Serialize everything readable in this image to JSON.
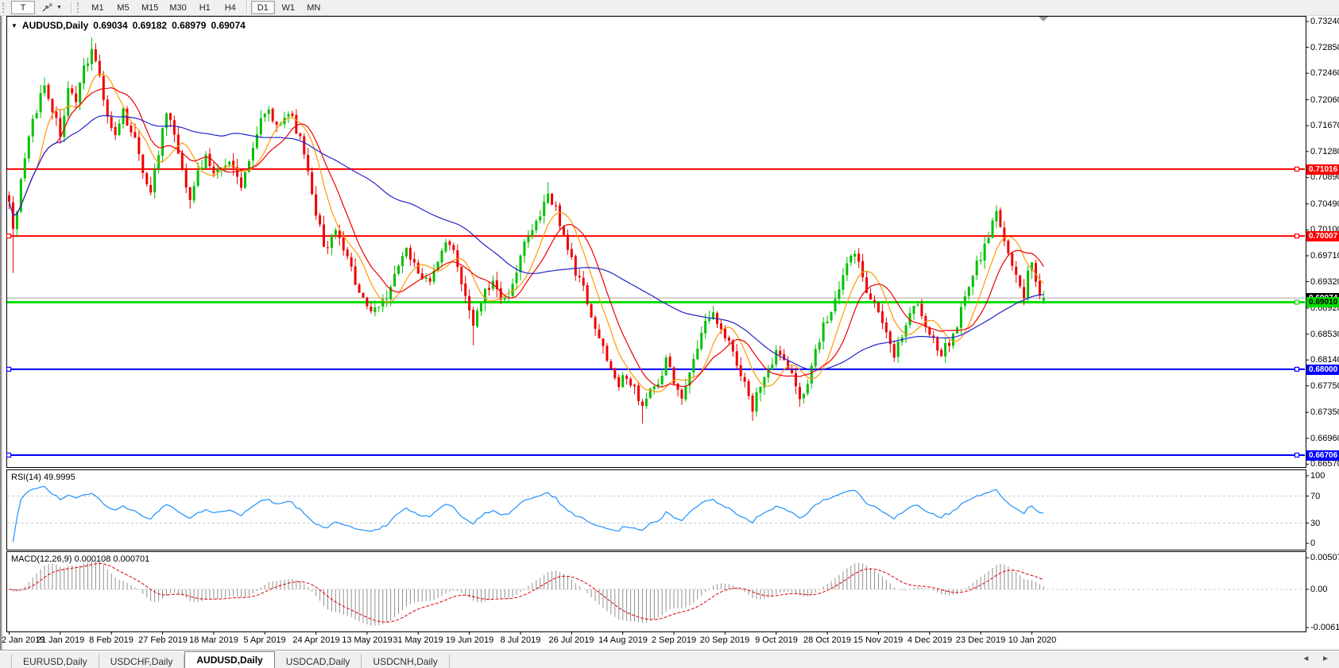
{
  "toolbar": {
    "text_tool": "T",
    "dropdown_caret": "▼",
    "timeframes": [
      "M1",
      "M5",
      "M15",
      "M30",
      "H1",
      "H4",
      "D1",
      "W1",
      "MN"
    ],
    "active_timeframe": "D1"
  },
  "chart": {
    "dropdown_icon": "▼",
    "symbol": "AUDUSD,Daily",
    "open": "0.69034",
    "high": "0.69182",
    "low": "0.68979",
    "close": "0.69074",
    "price_axis_ticks": [
      "0.73240",
      "0.72850",
      "0.72460",
      "0.72060",
      "0.71670",
      "0.71280",
      "0.70890",
      "0.70490",
      "0.70100",
      "0.69710",
      "0.69320",
      "0.68920",
      "0.68530",
      "0.68140",
      "0.67750",
      "0.67350",
      "0.66960",
      "0.66570"
    ],
    "price_tags": [
      {
        "value": "0.71016",
        "bg": "#ff0000",
        "fg": "#ffffff"
      },
      {
        "value": "0.70007",
        "bg": "#ff0000",
        "fg": "#ffffff"
      },
      {
        "value": "0.69074",
        "bg": "#000000",
        "fg": "#ffffff"
      },
      {
        "value": "0.69010",
        "bg": "#00dd00",
        "fg": "#000000"
      },
      {
        "value": "0.68000",
        "bg": "#0000ff",
        "fg": "#ffffff"
      },
      {
        "value": "0.66706",
        "bg": "#0000ff",
        "fg": "#ffffff"
      }
    ],
    "hlines": [
      {
        "price": 0.71016,
        "color": "#ff0000",
        "width": 2,
        "handles": [
          "right"
        ]
      },
      {
        "price": 0.70007,
        "color": "#ff0000",
        "width": 2,
        "handles": [
          "left",
          "right"
        ]
      },
      {
        "price": 0.69074,
        "color": "#a8a8a8",
        "width": 1,
        "handles": []
      },
      {
        "price": 0.6901,
        "color": "#00dd00",
        "width": 3,
        "handles": [
          "right"
        ]
      },
      {
        "price": 0.68,
        "color": "#0000ff",
        "width": 2,
        "handles": [
          "left",
          "right"
        ]
      },
      {
        "price": 0.66706,
        "color": "#0000ff",
        "width": 2,
        "handles": [
          "left",
          "right"
        ]
      }
    ],
    "dates": [
      "2 Jan 2019",
      "21 Jan 2019",
      "8 Feb 2019",
      "27 Feb 2019",
      "18 Mar 2019",
      "5 Apr 2019",
      "24 Apr 2019",
      "13 May 2019",
      "31 May 2019",
      "19 Jun 2019",
      "8 Jul 2019",
      "26 Jul 2019",
      "14 Aug 2019",
      "2 Sep 2019",
      "20 Sep 2019",
      "9 Oct 2019",
      "28 Oct 2019",
      "15 Nov 2019",
      "4 Dec 2019",
      "23 Dec 2019",
      "10 Jan 2020"
    ],
    "date_label_step": 13,
    "candles": {
      "count": 264,
      "up_color": "#00c000",
      "down_color": "#ee0000",
      "waypoints": [
        [
          0,
          0.706
        ],
        [
          1,
          0.7
        ],
        [
          2,
          0.704
        ],
        [
          4,
          0.7115
        ],
        [
          6,
          0.718
        ],
        [
          9,
          0.7225
        ],
        [
          11,
          0.719
        ],
        [
          13,
          0.716
        ],
        [
          15,
          0.722
        ],
        [
          17,
          0.719
        ],
        [
          19,
          0.7255
        ],
        [
          21,
          0.729
        ],
        [
          23,
          0.724
        ],
        [
          25,
          0.7175
        ],
        [
          27,
          0.715
        ],
        [
          29,
          0.719
        ],
        [
          31,
          0.716
        ],
        [
          34,
          0.71
        ],
        [
          36,
          0.7075
        ],
        [
          38,
          0.7125
        ],
        [
          40,
          0.718
        ],
        [
          42,
          0.7155
        ],
        [
          44,
          0.71
        ],
        [
          46,
          0.706
        ],
        [
          48,
          0.709
        ],
        [
          50,
          0.7125
        ],
        [
          53,
          0.7095
        ],
        [
          56,
          0.711
        ],
        [
          59,
          0.708
        ],
        [
          62,
          0.713
        ],
        [
          64,
          0.718
        ],
        [
          66,
          0.7195
        ],
        [
          69,
          0.7165
        ],
        [
          72,
          0.718
        ],
        [
          74,
          0.715
        ],
        [
          76,
          0.709
        ],
        [
          78,
          0.703
        ],
        [
          80,
          0.699
        ],
        [
          83,
          0.7005
        ],
        [
          86,
          0.696
        ],
        [
          89,
          0.6925
        ],
        [
          92,
          0.688
        ],
        [
          95,
          0.6905
        ],
        [
          98,
          0.694
        ],
        [
          101,
          0.6975
        ],
        [
          104,
          0.695
        ],
        [
          107,
          0.6925
        ],
        [
          110,
          0.698
        ],
        [
          112,
          0.7
        ],
        [
          114,
          0.6955
        ],
        [
          116,
          0.69
        ],
        [
          118,
          0.6865
        ],
        [
          120,
          0.691
        ],
        [
          123,
          0.6925
        ],
        [
          126,
          0.6905
        ],
        [
          129,
          0.695
        ],
        [
          132,
          0.6995
        ],
        [
          135,
          0.7035
        ],
        [
          137,
          0.706
        ],
        [
          139,
          0.704
        ],
        [
          141,
          0.7
        ],
        [
          143,
          0.6965
        ],
        [
          145,
          0.693
        ],
        [
          147,
          0.69
        ],
        [
          149,
          0.687
        ],
        [
          151,
          0.6832
        ],
        [
          153,
          0.68
        ],
        [
          155,
          0.678
        ],
        [
          157,
          0.6795
        ],
        [
          159,
          0.677
        ],
        [
          161,
          0.674
        ],
        [
          163,
          0.6768
        ],
        [
          165,
          0.679
        ],
        [
          167,
          0.681
        ],
        [
          169,
          0.678
        ],
        [
          171,
          0.6765
        ],
        [
          173,
          0.6795
        ],
        [
          175,
          0.683
        ],
        [
          177,
          0.6865
        ],
        [
          179,
          0.689
        ],
        [
          181,
          0.687
        ],
        [
          183,
          0.6835
        ],
        [
          185,
          0.681
        ],
        [
          187,
          0.678
        ],
        [
          189,
          0.6745
        ],
        [
          191,
          0.6772
        ],
        [
          193,
          0.68
        ],
        [
          195,
          0.6832
        ],
        [
          197,
          0.6812
        ],
        [
          199,
          0.6782
        ],
        [
          201,
          0.676
        ],
        [
          203,
          0.679
        ],
        [
          205,
          0.6825
        ],
        [
          207,
          0.686
        ],
        [
          209,
          0.689
        ],
        [
          211,
          0.692
        ],
        [
          213,
          0.695
        ],
        [
          215,
          0.6975
        ],
        [
          217,
          0.6945
        ],
        [
          219,
          0.691
        ],
        [
          221,
          0.688
        ],
        [
          223,
          0.6855
        ],
        [
          225,
          0.683
        ],
        [
          227,
          0.6855
        ],
        [
          229,
          0.688
        ],
        [
          231,
          0.6905
        ],
        [
          233,
          0.687
        ],
        [
          235,
          0.684
        ],
        [
          237,
          0.682
        ],
        [
          239,
          0.6845
        ],
        [
          241,
          0.6875
        ],
        [
          243,
          0.6905
        ],
        [
          245,
          0.694
        ],
        [
          247,
          0.6975
        ],
        [
          249,
          0.7005
        ],
        [
          251,
          0.7032
        ],
        [
          253,
          0.6995
        ],
        [
          255,
          0.696
        ],
        [
          257,
          0.6925
        ],
        [
          258,
          0.6905
        ],
        [
          259,
          0.694
        ],
        [
          260,
          0.6955
        ],
        [
          261,
          0.693
        ],
        [
          262,
          0.6907
        ],
        [
          263,
          0.6907
        ]
      ],
      "overrides": {
        "1": {
          "low": 0.6945
        },
        "21": {
          "high": 0.73
        },
        "118": {
          "low": 0.6836
        },
        "137": {
          "high": 0.7082
        },
        "161": {
          "low": 0.6718
        },
        "189": {
          "low": 0.6722
        },
        "251": {
          "high": 0.7047
        },
        "263": {
          "open": 0.69034,
          "high": 0.69182,
          "low": 0.68979,
          "close": 0.69074
        }
      }
    },
    "mas": [
      {
        "name": "ma-fast-orange",
        "window": 8,
        "color": "#ff9900"
      },
      {
        "name": "ma-mid-red",
        "window": 13,
        "color": "#ee0000"
      },
      {
        "name": "ma-slow-blue",
        "window": 55,
        "color": "#2323cc"
      }
    ]
  },
  "rsi": {
    "label": "RSI(14) 49.9995",
    "period": 14,
    "line_color": "#1e90ff",
    "level_color": "#c8c8c8",
    "levels": [
      70,
      30
    ],
    "axis": [
      {
        "t": "100",
        "v": 100
      },
      {
        "t": "70",
        "v": 70
      },
      {
        "t": "30",
        "v": 30
      },
      {
        "t": "0",
        "v": 0
      }
    ]
  },
  "macd": {
    "label": "MACD(12,26,9) 0.000108 0.000701",
    "hist_color": "#909090",
    "signal_color": "#dd0000",
    "zero_level_color": "#c8c8c8",
    "axis": [
      {
        "t": "0.005076",
        "v": 0.005076
      },
      {
        "t": "0.00",
        "v": 0
      },
      {
        "t": "-0.006148",
        "v": -0.006148
      }
    ]
  },
  "tabs": {
    "items": [
      "EURUSD,Daily",
      "USDCHF,Daily",
      "AUDUSD,Daily",
      "USDCAD,Daily",
      "USDCNH,Daily"
    ],
    "active_index": 2,
    "scroll_left_icon": "◄",
    "scroll_right_icon": "►"
  }
}
